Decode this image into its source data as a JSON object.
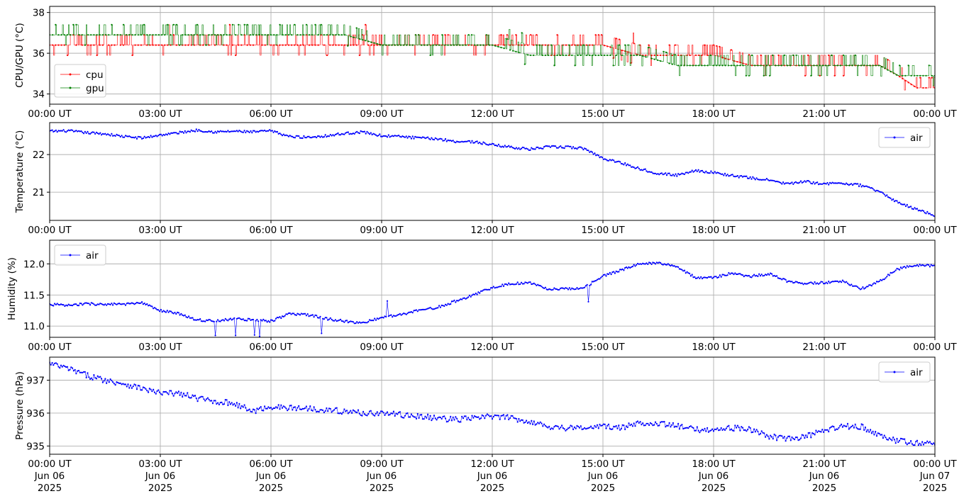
{
  "chart_data": [
    {
      "type": "line",
      "ylabel": "CPU/GPU (°C)",
      "ylim": [
        33.5,
        38.3
      ],
      "yticks": [
        34,
        36,
        38
      ],
      "ytick_labels": [
        "34",
        "36",
        "38"
      ],
      "xlim": [
        0,
        24
      ],
      "xticks": [
        0,
        3,
        6,
        9,
        12,
        15,
        18,
        21,
        24
      ],
      "xtick_labels": [
        "00:00 UT",
        "03:00 UT",
        "06:00 UT",
        "09:00 UT",
        "12:00 UT",
        "15:00 UT",
        "18:00 UT",
        "21:00 UT",
        "00:00 UT"
      ],
      "grid": true,
      "legend": "center-left",
      "series": [
        {
          "name": "cpu",
          "color": "#ff0000",
          "x": [
            0,
            1,
            2,
            3,
            4,
            5,
            6,
            7,
            8,
            9,
            10,
            11,
            12,
            13,
            14,
            15,
            16,
            17,
            18,
            19,
            20,
            21,
            22,
            22.5,
            23,
            23.5,
            24
          ],
          "y": [
            36.4,
            36.4,
            36.4,
            36.4,
            36.4,
            36.4,
            36.4,
            36.4,
            36.4,
            36.4,
            36.4,
            36.4,
            36.4,
            36.4,
            36.4,
            36.4,
            35.9,
            35.9,
            35.9,
            35.4,
            35.4,
            35.4,
            35.4,
            35.4,
            34.9,
            34.3,
            34.3
          ]
        },
        {
          "name": "gpu",
          "color": "#008000",
          "x": [
            0,
            1,
            2,
            3,
            4,
            5,
            6,
            7,
            8,
            9,
            10,
            11,
            12,
            13,
            14,
            15,
            16,
            17,
            18,
            19,
            20,
            21,
            22,
            22.5,
            23,
            23.5,
            24
          ],
          "y": [
            36.9,
            36.9,
            36.9,
            36.9,
            36.9,
            36.9,
            36.9,
            36.9,
            36.9,
            36.4,
            36.4,
            36.4,
            36.4,
            35.9,
            35.9,
            35.9,
            35.9,
            35.4,
            35.4,
            35.4,
            35.4,
            35.4,
            35.4,
            35.4,
            34.9,
            34.9,
            34.9
          ]
        }
      ]
    },
    {
      "type": "line",
      "ylabel": "Temperature (°C)",
      "ylim": [
        20.25,
        22.85
      ],
      "yticks": [
        21,
        22
      ],
      "ytick_labels": [
        "21",
        "22"
      ],
      "xlim": [
        0,
        24
      ],
      "xticks": [
        0,
        3,
        6,
        9,
        12,
        15,
        18,
        21,
        24
      ],
      "xtick_labels": [
        "00:00 UT",
        "03:00 UT",
        "06:00 UT",
        "09:00 UT",
        "12:00 UT",
        "15:00 UT",
        "18:00 UT",
        "21:00 UT",
        "00:00 UT"
      ],
      "grid": true,
      "legend": "top-right",
      "series": [
        {
          "name": "air",
          "color": "#0000ff",
          "x": [
            0,
            0.5,
            1,
            1.5,
            2,
            2.5,
            3,
            3.5,
            4,
            4.5,
            5,
            5.5,
            6,
            6.5,
            7,
            7.5,
            8,
            8.5,
            9,
            9.5,
            10,
            10.5,
            11,
            11.5,
            12,
            12.5,
            13,
            13.5,
            14,
            14.5,
            15,
            15.5,
            16,
            16.5,
            17,
            17.5,
            18,
            18.5,
            19,
            19.5,
            20,
            20.5,
            21,
            21.5,
            22,
            22.5,
            23,
            23.5,
            24
          ],
          "y": [
            22.62,
            22.63,
            22.58,
            22.55,
            22.48,
            22.44,
            22.52,
            22.58,
            22.65,
            22.6,
            22.62,
            22.6,
            22.63,
            22.48,
            22.46,
            22.5,
            22.56,
            22.6,
            22.5,
            22.48,
            22.44,
            22.42,
            22.35,
            22.34,
            22.26,
            22.2,
            22.14,
            22.2,
            22.2,
            22.16,
            21.9,
            21.78,
            21.62,
            21.5,
            21.45,
            21.58,
            21.52,
            21.44,
            21.38,
            21.32,
            21.22,
            21.28,
            21.22,
            21.24,
            21.18,
            21.02,
            20.72,
            20.55,
            20.38
          ]
        }
      ]
    },
    {
      "type": "line",
      "ylabel": "Humidity (%)",
      "ylim": [
        10.82,
        12.38
      ],
      "yticks": [
        11.0,
        11.5,
        12.0
      ],
      "ytick_labels": [
        "11.0",
        "11.5",
        "12.0"
      ],
      "xlim": [
        0,
        24
      ],
      "xticks": [
        0,
        3,
        6,
        9,
        12,
        15,
        18,
        21,
        24
      ],
      "xtick_labels": [
        "00:00 UT",
        "03:00 UT",
        "06:00 UT",
        "09:00 UT",
        "12:00 UT",
        "15:00 UT",
        "18:00 UT",
        "21:00 UT",
        "00:00 UT"
      ],
      "grid": true,
      "legend": "top-left",
      "series": [
        {
          "name": "air",
          "color": "#0000ff",
          "x": [
            0,
            0.5,
            1,
            1.5,
            2,
            2.5,
            3,
            3.5,
            4,
            4.5,
            5,
            5.5,
            6,
            6.5,
            7,
            7.5,
            8,
            8.5,
            9,
            9.5,
            10,
            10.5,
            11,
            11.5,
            12,
            12.5,
            13,
            13.5,
            14,
            14.5,
            15,
            15.5,
            16,
            16.5,
            17,
            17.5,
            18,
            18.5,
            19,
            19.5,
            20,
            20.5,
            21,
            21.5,
            22,
            22.5,
            23,
            23.5,
            24
          ],
          "y": [
            11.35,
            11.33,
            11.36,
            11.35,
            11.35,
            11.37,
            11.25,
            11.2,
            11.1,
            11.08,
            11.12,
            11.1,
            11.08,
            11.2,
            11.18,
            11.12,
            11.08,
            11.05,
            11.14,
            11.18,
            11.25,
            11.3,
            11.4,
            11.5,
            11.62,
            11.68,
            11.7,
            11.6,
            11.6,
            11.62,
            11.8,
            11.9,
            12.0,
            12.02,
            11.95,
            11.78,
            11.78,
            11.85,
            11.8,
            11.84,
            11.72,
            11.68,
            11.7,
            11.72,
            11.6,
            11.72,
            11.92,
            11.98,
            11.97
          ]
        }
      ]
    },
    {
      "type": "line",
      "ylabel": "Pressure (hPa)",
      "ylim": [
        934.75,
        937.7
      ],
      "yticks": [
        935,
        936,
        937
      ],
      "ytick_labels": [
        "935",
        "936",
        "937"
      ],
      "xlim": [
        0,
        24
      ],
      "xticks": [
        0,
        3,
        6,
        9,
        12,
        15,
        18,
        21,
        24
      ],
      "xtick_labels": [
        "00:00 UT",
        "03:00 UT",
        "06:00 UT",
        "09:00 UT",
        "12:00 UT",
        "15:00 UT",
        "18:00 UT",
        "21:00 UT",
        "00:00 UT"
      ],
      "xtick_sublabels": [
        "Jun 06",
        "Jun 06",
        "Jun 06",
        "Jun 06",
        "Jun 06",
        "Jun 06",
        "Jun 06",
        "Jun 06",
        "Jun 07"
      ],
      "xtick_years": [
        "2025",
        "2025",
        "2025",
        "2025",
        "2025",
        "2025",
        "2025",
        "2025",
        "2025"
      ],
      "grid": true,
      "legend": "top-right",
      "series": [
        {
          "name": "air",
          "color": "#0000ff",
          "x": [
            0,
            0.5,
            1,
            1.5,
            2,
            2.5,
            3,
            3.5,
            4,
            4.5,
            5,
            5.5,
            6,
            6.5,
            7,
            7.5,
            8,
            8.5,
            9,
            9.5,
            10,
            10.5,
            11,
            11.5,
            12,
            12.5,
            13,
            13.5,
            14,
            14.5,
            15,
            15.5,
            16,
            16.5,
            17,
            17.5,
            18,
            18.5,
            19,
            19.5,
            20,
            20.5,
            21,
            21.5,
            22,
            22.5,
            23,
            23.5,
            24
          ],
          "y": [
            937.5,
            937.35,
            937.15,
            937.0,
            936.9,
            936.75,
            936.6,
            936.6,
            936.45,
            936.35,
            936.3,
            936.05,
            936.2,
            936.15,
            936.15,
            936.1,
            936.05,
            936.0,
            936.0,
            935.95,
            935.9,
            935.85,
            935.8,
            935.85,
            935.9,
            935.85,
            935.75,
            935.6,
            935.55,
            935.55,
            935.6,
            935.55,
            935.7,
            935.7,
            935.6,
            935.5,
            935.5,
            935.55,
            935.5,
            935.3,
            935.2,
            935.3,
            935.45,
            935.6,
            935.6,
            935.3,
            935.15,
            935.1,
            935.05
          ]
        }
      ]
    }
  ]
}
